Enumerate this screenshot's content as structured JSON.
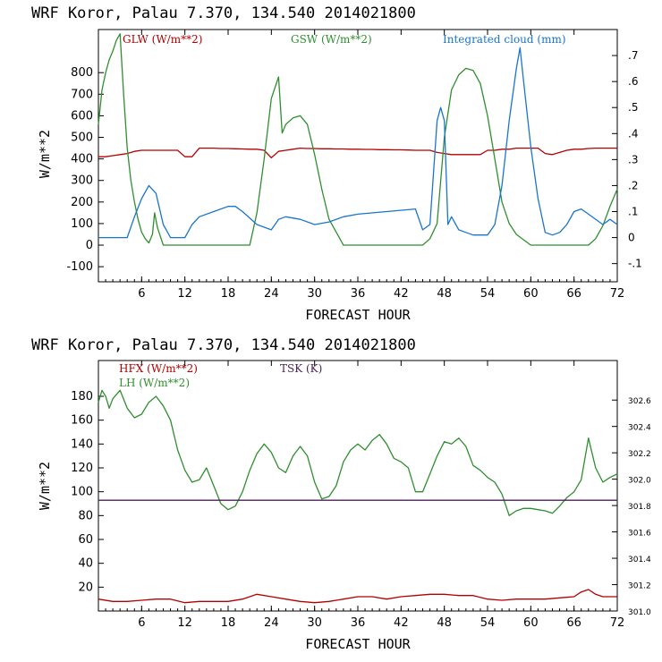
{
  "chart_data": [
    {
      "type": "line",
      "title": "WRF  Koror, Palau   7.370, 134.540  2014021800",
      "xlabel": "FORECAST HOUR",
      "ylabel": "W/m**2",
      "xlim": [
        0,
        72
      ],
      "ylim": [
        -170,
        1000
      ],
      "y2lim": [
        -0.17,
        0.8
      ],
      "x_ticks": [
        6,
        12,
        18,
        24,
        30,
        36,
        42,
        48,
        54,
        60,
        66,
        72
      ],
      "y_ticks": [
        -100,
        0,
        100,
        200,
        300,
        400,
        500,
        600,
        700,
        800
      ],
      "y2_ticks": [
        ".7",
        ".6",
        ".5",
        ".4",
        ".3",
        ".2",
        ".1",
        "0",
        "-.1"
      ],
      "y2_tick_values": [
        0.7,
        0.6,
        0.5,
        0.4,
        0.3,
        0.2,
        0.1,
        0,
        -0.1
      ],
      "grid": false,
      "legend": "top",
      "series": [
        {
          "name": "GLW (W/m**2)",
          "color": "#b30000",
          "axis": "left",
          "x": [
            0,
            1,
            2,
            3,
            4,
            5,
            6,
            7,
            8,
            9,
            10,
            11,
            12,
            13,
            14,
            15,
            16,
            17,
            18,
            19,
            20,
            21,
            22,
            23,
            24,
            25,
            26,
            27,
            28,
            29,
            30,
            31,
            32,
            33,
            34,
            35,
            36,
            37,
            38,
            39,
            40,
            41,
            42,
            43,
            44,
            45,
            46,
            47,
            48,
            49,
            50,
            51,
            52,
            53,
            54,
            55,
            56,
            57,
            58,
            59,
            60,
            61,
            62,
            63,
            64,
            65,
            66,
            67,
            68,
            69,
            70,
            71,
            72
          ],
          "y": [
            410,
            410,
            415,
            420,
            425,
            435,
            440,
            440,
            440,
            440,
            440,
            440,
            410,
            410,
            450,
            450,
            450,
            448,
            448,
            447,
            446,
            445,
            445,
            440,
            405,
            435,
            440,
            445,
            450,
            448,
            448,
            447,
            447,
            446,
            446,
            445,
            445,
            444,
            444,
            443,
            443,
            442,
            442,
            441,
            440,
            440,
            440,
            430,
            425,
            420,
            420,
            420,
            420,
            420,
            440,
            440,
            445,
            445,
            450,
            450,
            450,
            450,
            425,
            420,
            430,
            440,
            445,
            445,
            448,
            450,
            450,
            450,
            450
          ]
        },
        {
          "name": "GSW (W/m**2)",
          "color": "#2f8f2f",
          "axis": "left",
          "x": [
            0,
            0.5,
            1,
            1.5,
            2,
            2.5,
            3,
            3.5,
            4,
            4.5,
            5,
            5.5,
            6,
            6.5,
            7,
            7.5,
            7.8,
            8.2,
            9,
            10,
            12,
            18,
            21,
            22,
            23,
            24,
            25,
            25.5,
            26,
            27,
            28,
            29,
            30,
            31,
            32,
            34,
            36,
            42,
            45,
            46,
            47,
            48,
            49,
            50,
            51,
            52,
            53,
            54,
            55,
            56,
            57,
            58,
            60,
            66,
            68,
            69,
            70,
            71,
            72
          ],
          "y": [
            560,
            720,
            800,
            860,
            900,
            950,
            980,
            700,
            450,
            300,
            200,
            120,
            60,
            30,
            10,
            50,
            150,
            80,
            0,
            0,
            0,
            0,
            0,
            150,
            400,
            680,
            780,
            520,
            560,
            590,
            600,
            560,
            420,
            260,
            120,
            0,
            0,
            0,
            0,
            30,
            100,
            500,
            720,
            790,
            820,
            810,
            750,
            600,
            400,
            200,
            100,
            50,
            0,
            0,
            0,
            30,
            90,
            180,
            260
          ]
        },
        {
          "name": "Integrated cloud (mm)",
          "color": "#1a75cc",
          "axis": "right",
          "x": [
            0,
            4,
            5,
            6,
            7,
            8,
            9,
            10,
            12,
            13,
            14,
            16,
            18,
            19,
            20,
            22,
            24,
            25,
            26,
            28,
            30,
            32,
            34,
            36,
            40,
            44,
            45,
            46,
            47,
            47.5,
            48,
            48.5,
            49,
            50,
            51,
            52,
            53,
            54,
            55,
            56,
            57,
            58,
            58.5,
            59,
            60,
            61,
            62,
            63,
            64,
            65,
            66,
            67,
            68,
            70,
            71,
            72
          ],
          "y": [
            0,
            0,
            0.08,
            0.15,
            0.2,
            0.17,
            0.05,
            0,
            0,
            0.05,
            0.08,
            0.1,
            0.12,
            0.12,
            0.1,
            0.05,
            0.03,
            0.07,
            0.08,
            0.07,
            0.05,
            0.06,
            0.08,
            0.09,
            0.1,
            0.11,
            0.03,
            0.05,
            0.45,
            0.5,
            0.45,
            0.05,
            0.08,
            0.03,
            0.02,
            0.01,
            0.01,
            0.01,
            0.05,
            0.2,
            0.45,
            0.65,
            0.73,
            0.6,
            0.35,
            0.15,
            0.02,
            0.01,
            0.02,
            0.05,
            0.1,
            0.11,
            0.09,
            0.05,
            0.07,
            0.05
          ]
        }
      ]
    },
    {
      "type": "line",
      "title": "WRF  Koror, Palau   7.370, 134.540  2014021800",
      "xlabel": "FORECAST HOUR",
      "ylabel": "W/m**2",
      "xlim": [
        0,
        72
      ],
      "ylim": [
        0,
        210
      ],
      "y2lim": [
        301.0,
        302.9
      ],
      "x_ticks": [
        6,
        12,
        18,
        24,
        30,
        36,
        42,
        48,
        54,
        60,
        66,
        72
      ],
      "y_ticks": [
        20,
        40,
        60,
        80,
        100,
        120,
        140,
        160,
        180
      ],
      "y2_ticks": [
        "302.6",
        "302.4",
        "302.2",
        "302.0",
        "301.8",
        "301.6",
        "301.4",
        "301.2",
        "301.0"
      ],
      "y2_tick_values": [
        302.6,
        302.4,
        302.2,
        302.0,
        301.8,
        301.6,
        301.4,
        301.2,
        301.0
      ],
      "grid": false,
      "legend": "top",
      "series": [
        {
          "name": "HFX (W/m**2)",
          "color": "#b30000",
          "axis": "left",
          "x": [
            0,
            2,
            4,
            6,
            8,
            10,
            12,
            14,
            16,
            18,
            20,
            22,
            24,
            26,
            28,
            30,
            32,
            34,
            36,
            38,
            40,
            42,
            44,
            46,
            48,
            50,
            52,
            54,
            56,
            58,
            60,
            62,
            64,
            66,
            67,
            68,
            69,
            70,
            72
          ],
          "y": [
            10,
            8,
            8,
            9,
            10,
            10,
            7,
            8,
            8,
            8,
            10,
            14,
            12,
            10,
            8,
            7,
            8,
            10,
            12,
            12,
            10,
            12,
            13,
            14,
            14,
            13,
            13,
            10,
            9,
            10,
            10,
            10,
            11,
            12,
            16,
            18,
            14,
            12,
            12
          ]
        },
        {
          "name": "LH  (W/m**2)",
          "color": "#2f8f2f",
          "axis": "left",
          "x": [
            0,
            0.5,
            1,
            1.5,
            2,
            3,
            4,
            5,
            6,
            7,
            8,
            9,
            10,
            11,
            12,
            13,
            14,
            15,
            16,
            17,
            18,
            19,
            20,
            21,
            22,
            23,
            24,
            25,
            26,
            27,
            28,
            29,
            30,
            31,
            32,
            33,
            34,
            35,
            36,
            37,
            38,
            39,
            40,
            41,
            42,
            43,
            44,
            45,
            46,
            47,
            48,
            49,
            50,
            51,
            52,
            53,
            54,
            55,
            56,
            57,
            58,
            59,
            60,
            61,
            62,
            63,
            64,
            65,
            66,
            67,
            68,
            69,
            70,
            71,
            72
          ],
          "y": [
            175,
            185,
            180,
            170,
            178,
            185,
            170,
            162,
            165,
            175,
            180,
            172,
            160,
            135,
            118,
            108,
            110,
            120,
            105,
            90,
            85,
            88,
            100,
            118,
            132,
            140,
            133,
            120,
            116,
            130,
            138,
            130,
            108,
            94,
            96,
            105,
            125,
            135,
            140,
            135,
            143,
            148,
            140,
            128,
            125,
            120,
            100,
            100,
            115,
            130,
            142,
            140,
            145,
            138,
            122,
            118,
            112,
            108,
            98,
            80,
            84,
            86,
            86,
            85,
            84,
            82,
            88,
            95,
            100,
            110,
            145,
            120,
            108,
            112,
            115
          ]
        },
        {
          "name": "TSK (K)",
          "color": "#4b1f5a",
          "axis": "right",
          "x": [
            0,
            72
          ],
          "y": [
            301.84,
            301.84
          ]
        }
      ]
    }
  ]
}
